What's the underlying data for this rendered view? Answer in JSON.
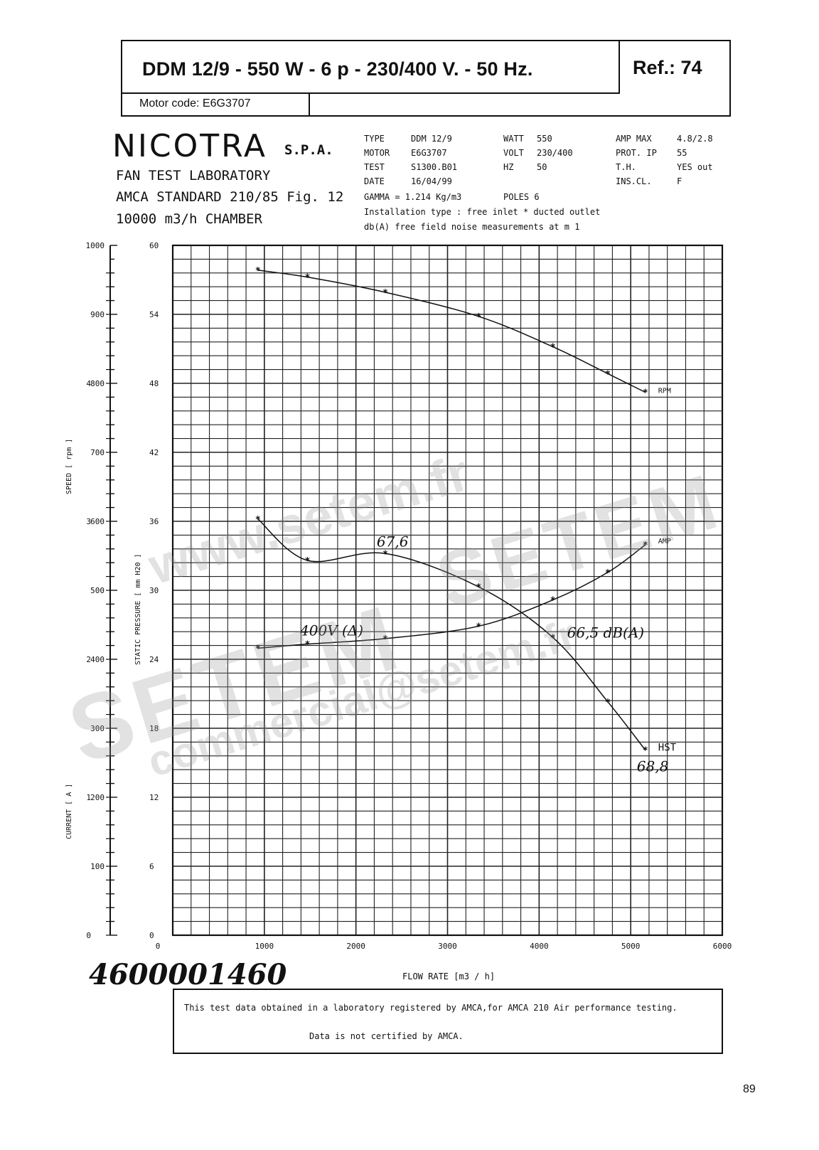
{
  "header": {
    "title": "DDM  12/9  - 550 W - 6 p - 230/400 V. - 50 Hz.",
    "ref": "Ref.:  74",
    "motor_code": "Motor code: E6G3707"
  },
  "brand": {
    "name": "NICOTRA",
    "suffix": "S.P.A.",
    "line1": "FAN TEST LABORATORY",
    "line2": "AMCA STANDARD 210/85 Fig. 12",
    "line3": "10000 m3/h  CHAMBER"
  },
  "specs": {
    "type_label": "TYPE",
    "type_value": "DDM 12/9",
    "motor_label": "MOTOR",
    "motor_value": "E6G3707",
    "test_label": "TEST",
    "test_value": "S1300.B01",
    "date_label": "DATE",
    "date_value": "16/04/99",
    "watt_label": "WATT",
    "watt_value": "550",
    "volt_label": "VOLT",
    "volt_value": "230/400",
    "hz_label": "HZ",
    "hz_value": "50",
    "amp_label": "AMP MAX",
    "amp_value": "4.8/2.8",
    "prot_label": "PROT.  IP",
    "prot_value": "55",
    "th_label": "T.H.",
    "th_value": "YES out",
    "ins_label": "INS.CL.",
    "ins_value": "F",
    "gamma": "GAMMA = 1.214 Kg/m3",
    "poles": "POLES 6",
    "installation": "Installation type :  free inlet * ducted outlet",
    "noise": "db(A)  free field noise measurements at m  1"
  },
  "chart_data": {
    "type": "line",
    "xlabel": "FLOW RATE  [m3 / h]",
    "xlim": [
      0,
      6000
    ],
    "x_ticks": [
      "0",
      "1000",
      "2000",
      "3000",
      "4000",
      "5000",
      "6000"
    ],
    "axes": {
      "speed": {
        "label": "SPEED   [ rpm ]",
        "lim": [
          0,
          1000
        ],
        "ticks": [
          "0",
          "100",
          "200",
          "300",
          "400",
          "500",
          "600",
          "700",
          "800",
          "900",
          "1000"
        ]
      },
      "pressure": {
        "label": "STATIC PRESSURE   [ mm H20 ]",
        "lim": [
          0,
          60
        ],
        "ticks": [
          "0",
          "6",
          "12",
          "18",
          "24",
          "30",
          "36",
          "42",
          "48",
          "54",
          "60"
        ]
      },
      "current": {
        "label": "CURRENT    [ A ]",
        "lim": [
          0,
          5
        ],
        "ticks": [
          "0",
          "1",
          "2",
          "3",
          "4"
        ]
      }
    },
    "series": [
      {
        "name": "RPM",
        "axis": "speed",
        "x": [
          930,
          1470,
          2320,
          3340,
          4150,
          4750,
          5160
        ],
        "values": [
          964,
          954,
          932,
          897,
          853,
          814,
          787
        ]
      },
      {
        "name": "HST",
        "axis": "pressure",
        "x": [
          930,
          1470,
          2320,
          3340,
          4150,
          4750,
          5160
        ],
        "values": [
          36.2,
          32.6,
          33.2,
          30.3,
          25.9,
          20.3,
          16.1
        ]
      },
      {
        "name": "AMP",
        "axis": "current",
        "x": [
          930,
          1470,
          2320,
          3340,
          4150,
          4750,
          5160
        ],
        "values": [
          2.08,
          2.11,
          2.15,
          2.24,
          2.43,
          2.63,
          2.83
        ]
      }
    ],
    "annotations": [
      {
        "text": "67,6",
        "x": 2320,
        "axis": "pressure",
        "y": 33.2
      },
      {
        "text": "66,5 dB(A)",
        "x": 4150,
        "axis": "pressure",
        "y": 25.9
      },
      {
        "text": "68,8",
        "x": 5160,
        "axis": "pressure",
        "y": 16.1
      },
      {
        "text": "400V (Δ)",
        "x": 1700,
        "axis": "current",
        "y": 2.11
      }
    ]
  },
  "footer": {
    "number": "4600001460",
    "note1": "This test data obtained in a laboratory registered by AMCA,for AMCA 210 Air performance testing.",
    "note2": "Data is not certified by AMCA.",
    "page": "89"
  },
  "watermarks": [
    "www.setem.fr",
    "SETEM",
    "SETEM",
    "commercial@setem.fr"
  ]
}
